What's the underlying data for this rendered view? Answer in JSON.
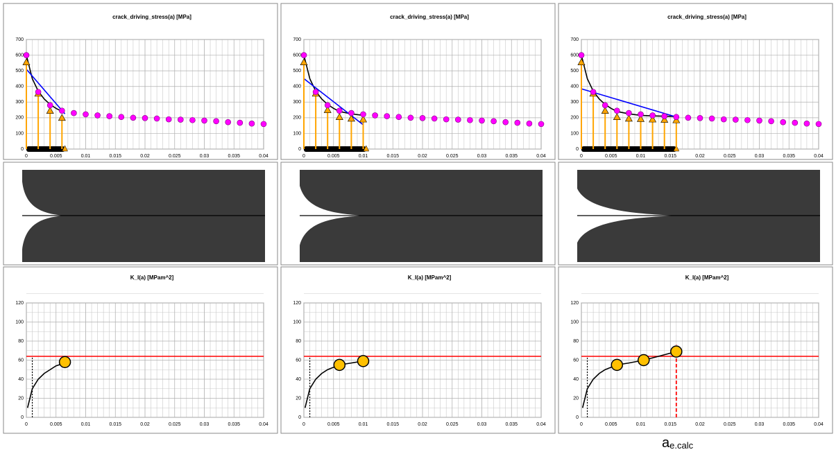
{
  "chart_data": [
    {
      "type": "scatter",
      "title": "crack_driving_stress(a) [MPa]",
      "xlim": [
        0,
        0.04
      ],
      "xticks": [
        0,
        0.005,
        0.01,
        0.015,
        0.02,
        0.025,
        0.03,
        0.035,
        0.04
      ],
      "ylim": [
        0,
        700
      ],
      "yticks": [
        0,
        100,
        200,
        300,
        400,
        500,
        600,
        700
      ],
      "grid": true,
      "crack_length": 0.0065,
      "series": [
        {
          "color": "#000000",
          "marker": "none",
          "x": [
            0,
            0.001,
            0.002,
            0.003,
            0.004,
            0.005,
            0.006
          ],
          "values": [
            600,
            450,
            370,
            320,
            285,
            260,
            240
          ]
        },
        {
          "color": "#0000ff",
          "marker": "none",
          "x": [
            0,
            0.0065
          ],
          "values": [
            510,
            225
          ]
        },
        {
          "color": "#ffa500",
          "marker": "triangle",
          "stem": true,
          "x": [
            0,
            0.002,
            0.004,
            0.006
          ],
          "values": [
            555,
            355,
            245,
            200
          ]
        },
        {
          "color": "#ff00ff",
          "marker": "circle",
          "x": [
            0,
            0.002,
            0.004,
            0.006,
            0.008,
            0.01,
            0.012,
            0.014,
            0.016,
            0.018,
            0.02,
            0.022,
            0.024,
            0.026,
            0.028,
            0.03,
            0.032,
            0.034,
            0.036,
            0.038,
            0.04
          ],
          "values": [
            600,
            365,
            280,
            245,
            230,
            222,
            215,
            210,
            205,
            200,
            198,
            195,
            190,
            188,
            185,
            182,
            178,
            172,
            168,
            163,
            160
          ]
        }
      ]
    },
    {
      "type": "scatter",
      "title": "crack_driving_stress(a) [MPa]",
      "xlim": [
        0,
        0.04
      ],
      "xticks": [
        0,
        0.005,
        0.01,
        0.015,
        0.02,
        0.025,
        0.03,
        0.035,
        0.04
      ],
      "ylim": [
        0,
        700
      ],
      "yticks": [
        0,
        100,
        200,
        300,
        400,
        500,
        600,
        700
      ],
      "grid": true,
      "crack_length": 0.0105,
      "series": [
        {
          "color": "#000000",
          "marker": "none",
          "x": [
            0,
            0.001,
            0.002,
            0.003,
            0.004,
            0.005,
            0.006,
            0.008,
            0.01
          ],
          "values": [
            600,
            450,
            370,
            320,
            285,
            260,
            240,
            225,
            215
          ]
        },
        {
          "color": "#0000ff",
          "marker": "none",
          "x": [
            0,
            0.01
          ],
          "values": [
            450,
            155
          ]
        },
        {
          "color": "#ffa500",
          "marker": "triangle",
          "stem": true,
          "x": [
            0,
            0.002,
            0.004,
            0.006,
            0.008,
            0.01
          ],
          "values": [
            555,
            355,
            250,
            205,
            195,
            190
          ]
        },
        {
          "color": "#ff00ff",
          "marker": "circle",
          "x": [
            0,
            0.002,
            0.004,
            0.006,
            0.008,
            0.01,
            0.012,
            0.014,
            0.016,
            0.018,
            0.02,
            0.022,
            0.024,
            0.026,
            0.028,
            0.03,
            0.032,
            0.034,
            0.036,
            0.038,
            0.04
          ],
          "values": [
            600,
            365,
            280,
            245,
            230,
            222,
            215,
            210,
            205,
            200,
            198,
            195,
            190,
            188,
            185,
            182,
            178,
            172,
            168,
            163,
            160
          ]
        }
      ]
    },
    {
      "type": "scatter",
      "title": "crack_driving_stress(a) [MPa]",
      "xlim": [
        0,
        0.04
      ],
      "xticks": [
        0,
        0.005,
        0.01,
        0.015,
        0.02,
        0.025,
        0.03,
        0.035,
        0.04
      ],
      "ylim": [
        0,
        700
      ],
      "yticks": [
        0,
        100,
        200,
        300,
        400,
        500,
        600,
        700
      ],
      "grid": true,
      "crack_length": 0.016,
      "series": [
        {
          "color": "#000000",
          "marker": "none",
          "x": [
            0,
            0.001,
            0.002,
            0.003,
            0.004,
            0.005,
            0.006,
            0.008,
            0.01,
            0.012,
            0.014,
            0.016
          ],
          "values": [
            600,
            450,
            370,
            320,
            285,
            260,
            240,
            225,
            215,
            212,
            210,
            208
          ]
        },
        {
          "color": "#0000ff",
          "marker": "none",
          "x": [
            0,
            0.016
          ],
          "values": [
            385,
            205
          ]
        },
        {
          "color": "#ffa500",
          "marker": "triangle",
          "stem": true,
          "x": [
            0,
            0.002,
            0.004,
            0.006,
            0.008,
            0.01,
            0.012,
            0.014,
            0.016
          ],
          "values": [
            555,
            355,
            245,
            205,
            195,
            193,
            190,
            188,
            185
          ]
        },
        {
          "color": "#ff00ff",
          "marker": "circle",
          "x": [
            0,
            0.002,
            0.004,
            0.006,
            0.008,
            0.01,
            0.012,
            0.014,
            0.016,
            0.018,
            0.02,
            0.022,
            0.024,
            0.026,
            0.028,
            0.03,
            0.032,
            0.034,
            0.036,
            0.038,
            0.04
          ],
          "values": [
            600,
            365,
            280,
            245,
            230,
            222,
            215,
            210,
            205,
            200,
            198,
            195,
            190,
            188,
            185,
            182,
            178,
            172,
            168,
            163,
            160
          ]
        }
      ]
    },
    {
      "type": "scatter",
      "title": "K_I(a) [MPam^2]",
      "xlim": [
        0,
        0.04
      ],
      "xticks": [
        0,
        0.005,
        0.01,
        0.015,
        0.02,
        0.025,
        0.03,
        0.035,
        0.04
      ],
      "ylim": [
        0,
        120
      ],
      "yticks": [
        0,
        20,
        40,
        60,
        80,
        100,
        120
      ],
      "grid": true,
      "series": [
        {
          "color": "#ff0000",
          "marker": "none",
          "x": [
            0,
            0.04
          ],
          "values": [
            64,
            64
          ]
        },
        {
          "color": "#000000",
          "marker": "none",
          "dash": true,
          "x": [
            0.001,
            0.001
          ],
          "values": [
            0,
            63
          ]
        },
        {
          "color": "#000000",
          "marker": "none",
          "x": [
            0.0002,
            0.001,
            0.002,
            0.003,
            0.004,
            0.005,
            0.0065
          ],
          "values": [
            10,
            30,
            40,
            46,
            50,
            54,
            57
          ]
        },
        {
          "color": "#ffc000",
          "marker": "big-circle",
          "x": [
            0.0065
          ],
          "values": [
            58
          ]
        }
      ]
    },
    {
      "type": "scatter",
      "title": "K_I(a) [MPam^2]",
      "xlim": [
        0,
        0.04
      ],
      "xticks": [
        0,
        0.005,
        0.01,
        0.015,
        0.02,
        0.025,
        0.03,
        0.035,
        0.04
      ],
      "ylim": [
        0,
        120
      ],
      "yticks": [
        0,
        20,
        40,
        60,
        80,
        100,
        120
      ],
      "grid": true,
      "series": [
        {
          "color": "#ff0000",
          "marker": "none",
          "x": [
            0,
            0.04
          ],
          "values": [
            64,
            64
          ]
        },
        {
          "color": "#000000",
          "marker": "none",
          "dash": true,
          "x": [
            0.001,
            0.001
          ],
          "values": [
            0,
            63
          ]
        },
        {
          "color": "#000000",
          "marker": "none",
          "x": [
            0.0002,
            0.001,
            0.002,
            0.003,
            0.004,
            0.006,
            0.008,
            0.01
          ],
          "values": [
            10,
            30,
            40,
            46,
            50,
            55,
            57,
            59
          ]
        },
        {
          "color": "#ffc000",
          "marker": "big-circle",
          "x": [
            0.006,
            0.01
          ],
          "values": [
            55,
            59
          ]
        }
      ]
    },
    {
      "type": "scatter",
      "title": "K_I(a) [MPam^2]",
      "xlim": [
        0,
        0.04
      ],
      "xticks": [
        0,
        0.005,
        0.01,
        0.015,
        0.02,
        0.025,
        0.03,
        0.035,
        0.04
      ],
      "ylim": [
        0,
        120
      ],
      "yticks": [
        0,
        20,
        40,
        60,
        80,
        100,
        120
      ],
      "grid": true,
      "annotation": "a",
      "annotation_sub": "e.calc",
      "series": [
        {
          "color": "#ff0000",
          "marker": "none",
          "x": [
            0,
            0.04
          ],
          "values": [
            64,
            64
          ]
        },
        {
          "color": "#000000",
          "marker": "none",
          "dash": true,
          "x": [
            0.001,
            0.001
          ],
          "values": [
            0,
            63
          ]
        },
        {
          "color": "#ff0000",
          "marker": "none",
          "dash": true,
          "x": [
            0.016,
            0.016
          ],
          "values": [
            0,
            76
          ]
        },
        {
          "color": "#000000",
          "marker": "none",
          "x": [
            0.0002,
            0.001,
            0.002,
            0.003,
            0.004,
            0.006,
            0.008,
            0.0105,
            0.013,
            0.016
          ],
          "values": [
            10,
            30,
            40,
            46,
            50,
            55,
            57,
            60,
            64,
            69
          ]
        },
        {
          "color": "#ffc000",
          "marker": "big-circle",
          "x": [
            0.006,
            0.0105,
            0.016
          ],
          "values": [
            55,
            60,
            69
          ]
        }
      ]
    }
  ]
}
